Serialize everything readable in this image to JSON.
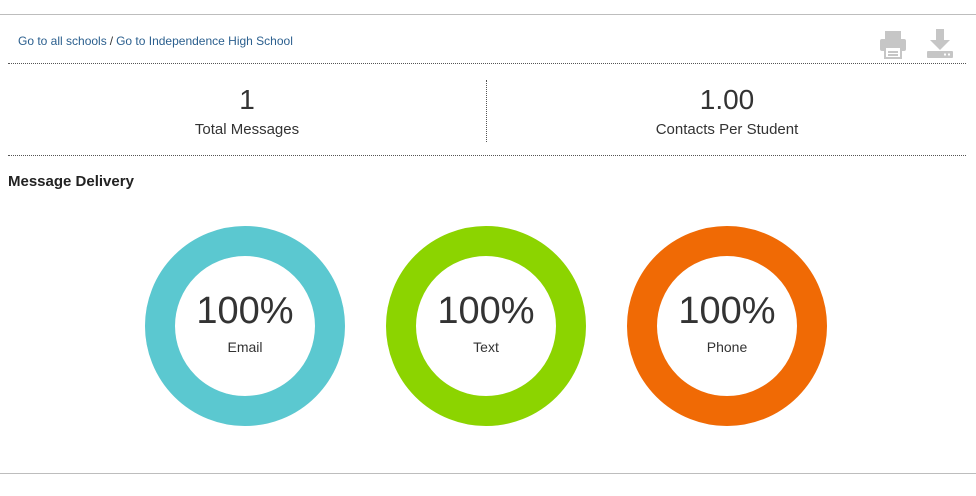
{
  "breadcrumb": {
    "link_all": "Go to all schools",
    "separator": "/",
    "link_school": "Go to Independence High School"
  },
  "toolbar": {
    "print_icon": "printer-icon",
    "download_icon": "download-icon",
    "icon_color": "#c6c6c6"
  },
  "stats": {
    "total_messages": {
      "value": "1",
      "label": "Total Messages"
    },
    "contacts_per_student": {
      "value": "1.00",
      "label": "Contacts Per Student"
    }
  },
  "section": {
    "title": "Message Delivery"
  },
  "delivery": [
    {
      "percent": "100%",
      "label": "Email",
      "fraction": 1.0,
      "color": "#5bc8d0"
    },
    {
      "percent": "100%",
      "label": "Text",
      "fraction": 1.0,
      "color": "#8cd400"
    },
    {
      "percent": "100%",
      "label": "Phone",
      "fraction": 1.0,
      "color": "#f06a05"
    }
  ]
}
